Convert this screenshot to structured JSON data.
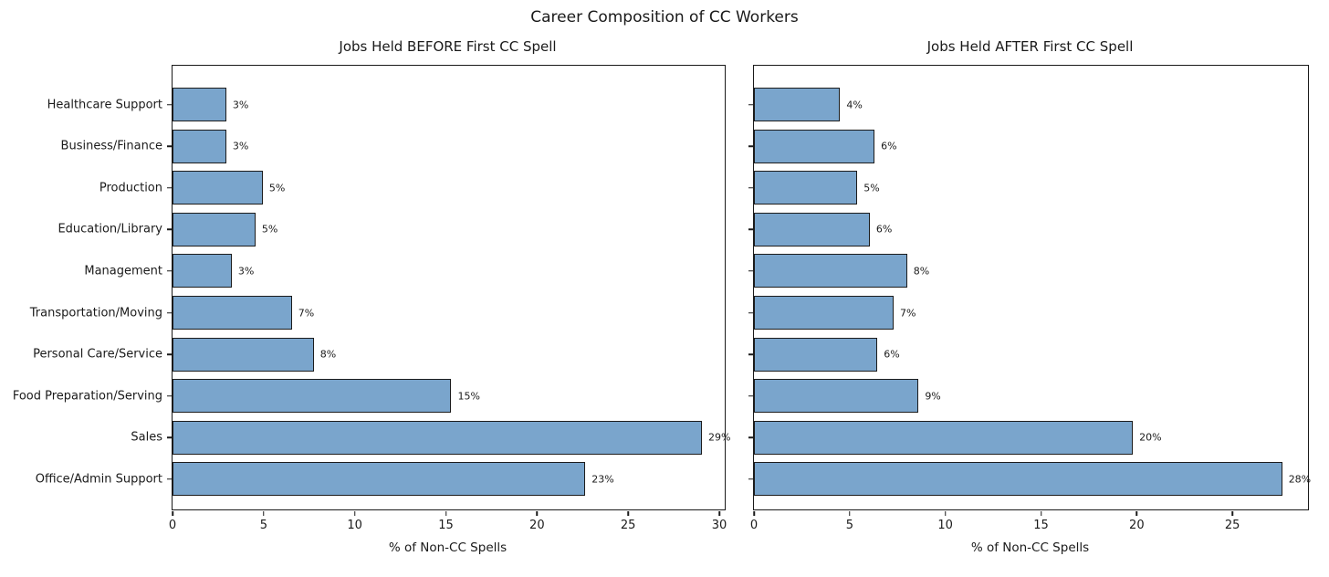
{
  "figure": {
    "title": "Career Composition of CC Workers",
    "bar_color": "#7aa5cc",
    "bar_edge_color": "#1c1c1c",
    "text_color": "#1a1a1a"
  },
  "chart_data": [
    {
      "type": "bar",
      "orientation": "horizontal",
      "title": "Jobs Held BEFORE First CC Spell",
      "xlabel": "% of Non-CC Spells",
      "categories": [
        "Healthcare Support",
        "Business/Finance",
        "Production",
        "Education/Library",
        "Management",
        "Transportation/Moving",
        "Personal Care/Service",
        "Food Preparation/Serving",
        "Sales",
        "Office/Admin Support"
      ],
      "values": [
        2.95,
        2.95,
        4.95,
        4.55,
        3.25,
        6.55,
        7.75,
        15.3,
        29.05,
        22.65
      ],
      "bar_labels": [
        "3%",
        "3%",
        "5%",
        "5%",
        "3%",
        "7%",
        "8%",
        "15%",
        "29%",
        "23%"
      ],
      "xticks": [
        0,
        5,
        10,
        15,
        20,
        25,
        30
      ],
      "xlim": [
        0,
        30.3
      ],
      "show_ytick_labels": true,
      "grid": false,
      "legend": null
    },
    {
      "type": "bar",
      "orientation": "horizontal",
      "title": "Jobs Held AFTER First CC Spell",
      "xlabel": "% of Non-CC Spells",
      "categories": [
        "Healthcare Support",
        "Business/Finance",
        "Production",
        "Education/Library",
        "Management",
        "Transportation/Moving",
        "Personal Care/Service",
        "Food Preparation/Serving",
        "Sales",
        "Office/Admin Support"
      ],
      "values": [
        4.5,
        6.3,
        5.4,
        6.05,
        8.0,
        7.3,
        6.45,
        8.6,
        19.8,
        27.6
      ],
      "bar_labels": [
        "4%",
        "6%",
        "5%",
        "6%",
        "8%",
        "7%",
        "6%",
        "9%",
        "20%",
        "28%"
      ],
      "xticks": [
        0,
        5,
        10,
        15,
        20,
        25
      ],
      "xlim": [
        0,
        28.95
      ],
      "show_ytick_labels": false,
      "grid": false,
      "legend": null
    }
  ]
}
